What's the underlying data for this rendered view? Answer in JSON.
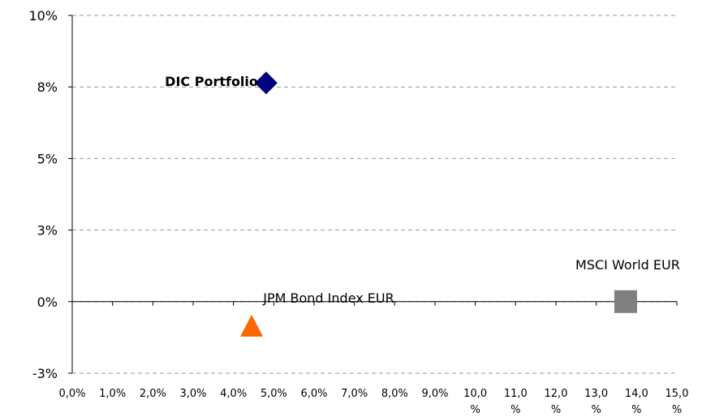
{
  "chart_data": {
    "type": "scatter",
    "series": [
      {
        "name": "DIC Portfolio",
        "color": "#000080",
        "marker": "diamond",
        "x": [
          4.81
        ],
        "values": [
          7.64
        ]
      },
      {
        "name": "JPM Bond Index EUR",
        "color": "#ff6600",
        "marker": "triangle",
        "x": [
          4.45
        ],
        "values": [
          -0.88
        ]
      },
      {
        "name": "MSCI World EUR",
        "color": "#808080",
        "marker": "square",
        "x": [
          13.73
        ],
        "values": [
          0
        ]
      }
    ],
    "xlim": [
      0,
      15
    ],
    "xticks": [
      {
        "value": 0,
        "label": "0,0%"
      },
      {
        "value": 1,
        "label": "1,0%"
      },
      {
        "value": 2,
        "label": "2,0%"
      },
      {
        "value": 3,
        "label": "3,0%"
      },
      {
        "value": 4,
        "label": "4,0%"
      },
      {
        "value": 5,
        "label": "5,0%"
      },
      {
        "value": 6,
        "label": "6,0%"
      },
      {
        "value": 7,
        "label": "7,0%"
      },
      {
        "value": 8,
        "label": "8,0%"
      },
      {
        "value": 9,
        "label": "9,0%"
      },
      {
        "value": 10,
        "label": "10,0 %"
      },
      {
        "value": 11,
        "label": "11,0 %"
      },
      {
        "value": 12,
        "label": "12,0 %"
      },
      {
        "value": 13,
        "label": "13,0 %"
      },
      {
        "value": 14,
        "label": "14,0 %"
      },
      {
        "value": 15,
        "label": "15,0 %"
      }
    ],
    "ylim": [
      -2.5,
      10
    ],
    "yticks": [
      {
        "value": -2.5,
        "label": "-3%"
      },
      {
        "value": 0,
        "label": "0%"
      },
      {
        "value": 2.5,
        "label": "3%"
      },
      {
        "value": 5,
        "label": "5%"
      },
      {
        "value": 7.5,
        "label": "8%"
      },
      {
        "value": 10,
        "label": "10%"
      }
    ],
    "grid": true
  }
}
